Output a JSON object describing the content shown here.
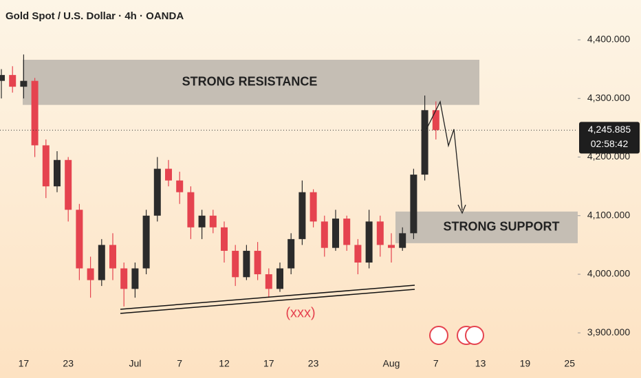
{
  "chart_data": {
    "type": "candlestick",
    "title": "Gold Spot / U.S. Dollar · 4h · OANDA",
    "categories": [
      null,
      null,
      "17",
      null,
      null,
      null,
      "23",
      null,
      null,
      null,
      null,
      null,
      "Jul",
      null,
      null,
      null,
      "7",
      null,
      null,
      null,
      "12",
      null,
      null,
      null,
      "17",
      null,
      null,
      null,
      "23",
      null,
      null,
      null,
      null,
      null,
      null,
      "Aug",
      null,
      null,
      null,
      "7",
      null,
      null,
      null,
      "13",
      null,
      null,
      null,
      "19",
      null,
      null,
      null,
      "25"
    ],
    "open": [
      4330,
      4340,
      4320,
      4330,
      4220,
      4150,
      4195,
      4110,
      4010,
      3990,
      4050,
      4010,
      3975,
      4010,
      4100,
      4180,
      4160,
      4140,
      4080,
      4100,
      4080,
      4040,
      3995,
      4040,
      4000,
      3975,
      4010,
      4060,
      4140,
      4090,
      4045,
      4095,
      4050,
      4020,
      4090,
      4050,
      4045,
      4070,
      4170,
      4280,
      null,
      null,
      null,
      null,
      null,
      null,
      null,
      null,
      null,
      null,
      null,
      null
    ],
    "high": [
      4350,
      4355,
      4375,
      4335,
      4230,
      4210,
      4200,
      4120,
      4030,
      4060,
      4070,
      4020,
      4020,
      4110,
      4200,
      4195,
      4175,
      4150,
      4110,
      4110,
      4090,
      4050,
      4050,
      4055,
      4010,
      4020,
      4070,
      4160,
      4145,
      4100,
      4110,
      4100,
      4060,
      4110,
      4100,
      4070,
      4080,
      4180,
      4305,
      4295,
      null,
      null,
      null,
      null,
      null,
      null,
      null,
      null,
      null,
      null,
      null,
      null
    ],
    "low": [
      4300,
      4310,
      4300,
      4200,
      4130,
      4140,
      4090,
      3990,
      3960,
      3980,
      3990,
      3945,
      3960,
      4000,
      4090,
      4150,
      4120,
      4060,
      4060,
      4070,
      4020,
      3980,
      3990,
      3990,
      3960,
      3970,
      4000,
      4050,
      4080,
      4030,
      4040,
      4040,
      4000,
      4010,
      4030,
      4020,
      4040,
      4060,
      4160,
      4230,
      null,
      null,
      null,
      null,
      null,
      null,
      null,
      null,
      null,
      null,
      null,
      null
    ],
    "close": [
      4340,
      4320,
      4330,
      4220,
      4150,
      4195,
      4110,
      4010,
      3990,
      4050,
      4010,
      3975,
      4010,
      4100,
      4180,
      4160,
      4140,
      4080,
      4100,
      4080,
      4040,
      3995,
      4040,
      4000,
      3975,
      4010,
      4060,
      4140,
      4090,
      4045,
      4095,
      4050,
      4020,
      4090,
      4050,
      4045,
      4070,
      4170,
      4280,
      4246,
      null,
      null,
      null,
      null,
      null,
      null,
      null,
      null,
      null,
      null,
      null,
      null
    ],
    "up_color": "#2b2b2b",
    "down_color": "#e5434f",
    "ylim": [
      3864,
      4468
    ],
    "yticks": [
      {
        "value": 3900,
        "label": "3,900.000"
      },
      {
        "value": 4000,
        "label": "4,000.000"
      },
      {
        "value": 4100,
        "label": "4,100.000"
      },
      {
        "value": 4200,
        "label": "4,200.000"
      },
      {
        "value": 4300,
        "label": "4,300.000"
      },
      {
        "value": 4400,
        "label": "4,400.000"
      }
    ],
    "last_price": {
      "value": 4245.885,
      "label": "4,245.885"
    },
    "countdown": "02:58:42",
    "resistance": {
      "label": "STRONG RESISTANCE",
      "range": [
        4289,
        4366
      ]
    },
    "support": {
      "label": "STRONG SUPPORT",
      "range": [
        4053,
        4107
      ]
    },
    "pattern_label": "(xxx)"
  }
}
